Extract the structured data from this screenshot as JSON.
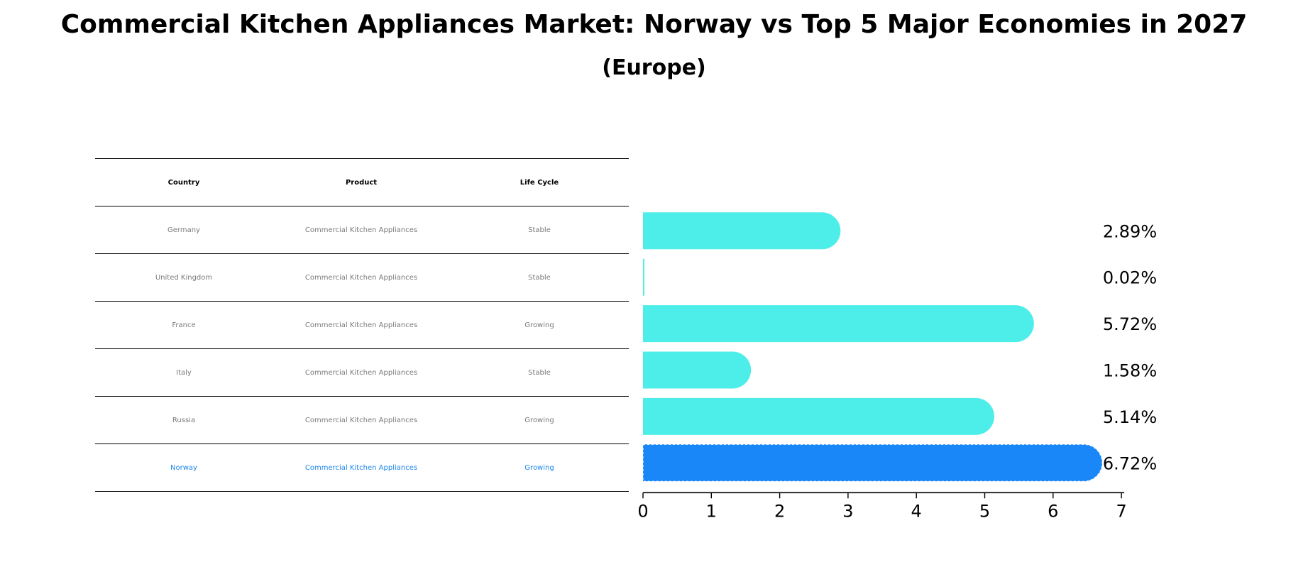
{
  "title": "Commercial Kitchen Appliances Market: Norway vs Top 5 Major Economies in 2027",
  "subtitle": "(Europe)",
  "table": {
    "headers": [
      "Country",
      "Product",
      "Life Cycle"
    ],
    "rows": [
      [
        "Germany",
        "Commercial Kitchen Appliances",
        "Stable"
      ],
      [
        "United Kingdom",
        "Commercial Kitchen Appliances",
        "Stable"
      ],
      [
        "France",
        "Commercial Kitchen Appliances",
        "Growing"
      ],
      [
        "Italy",
        "Commercial Kitchen Appliances",
        "Stable"
      ],
      [
        "Russia",
        "Commercial Kitchen Appliances",
        "Growing"
      ],
      [
        "Norway",
        "Commercial Kitchen Appliances",
        "Growing"
      ]
    ]
  },
  "colors": {
    "bar": "#4deeea",
    "highlight": "#1a87f8",
    "axis": "#000000",
    "muted_text": "#7a7a7a",
    "highlight_text": "#1a87ee"
  },
  "chart_data": {
    "type": "bar",
    "orientation": "horizontal",
    "title": "Commercial Kitchen Appliances Market: Norway vs Top 5 Major Economies in 2027",
    "subtitle": "(Europe)",
    "categories": [
      "Germany",
      "United Kingdom",
      "France",
      "Italy",
      "Russia",
      "Norway"
    ],
    "values": [
      2.89,
      0.02,
      5.72,
      1.58,
      5.14,
      6.72
    ],
    "value_labels": [
      "2.89%",
      "0.02%",
      "5.72%",
      "1.58%",
      "5.14%",
      "6.72%"
    ],
    "highlight_category": "Norway",
    "xlim": [
      0,
      7
    ],
    "xticks": [
      0,
      1,
      2,
      3,
      4,
      5,
      6,
      7
    ],
    "xlabel": "",
    "ylabel": "",
    "grid": false,
    "legend": "none"
  }
}
